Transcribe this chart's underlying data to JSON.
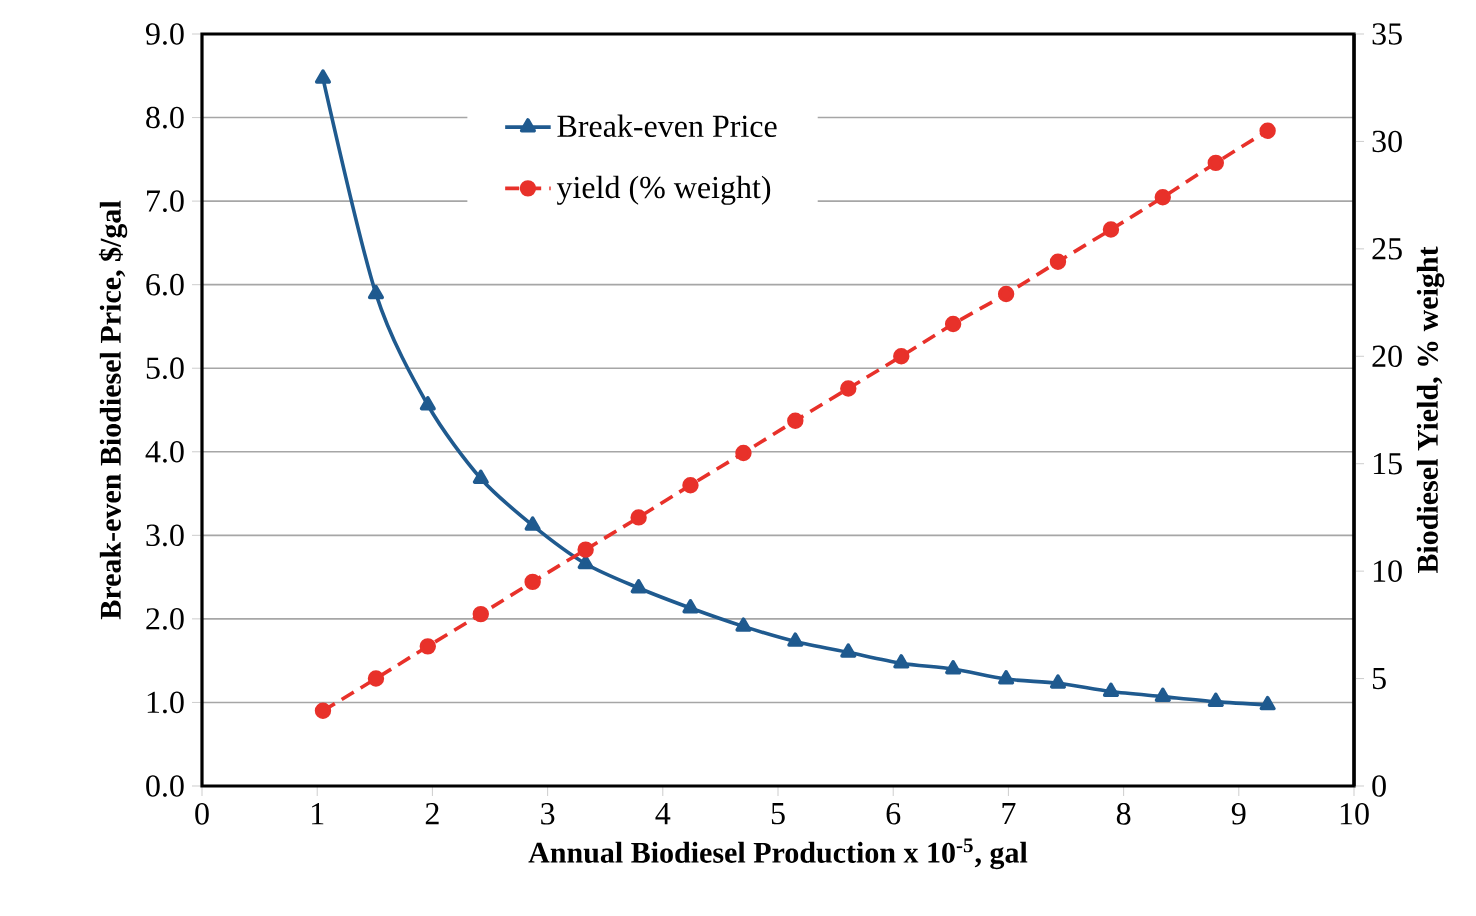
{
  "chart_data": {
    "type": "line",
    "xlabel": "Annual Biodiesel Production x 10$^{-5}$, gal",
    "ylabel": "Break-even Biodiesel  Price, $/gal",
    "y2label": "Biodiesel Yield, % weight",
    "x": [
      1.05,
      1.51,
      1.96,
      2.42,
      2.87,
      3.33,
      3.79,
      4.24,
      4.7,
      5.15,
      5.61,
      6.07,
      6.52,
      6.98,
      7.43,
      7.89,
      8.34,
      8.8,
      9.25
    ],
    "series": [
      {
        "name": "Break-even Price",
        "color": "#1f5a8f",
        "marker": "triangle",
        "line_style": "solid",
        "values": [
          8.47,
          5.89,
          4.56,
          3.68,
          3.12,
          2.66,
          2.37,
          2.13,
          1.91,
          1.73,
          1.6,
          1.47,
          1.4,
          1.28,
          1.23,
          1.13,
          1.07,
          1.01,
          0.97
        ]
      },
      {
        "name": "yield (% weight)",
        "color": "#e8312a",
        "marker": "circle",
        "line_style": "dashed",
        "axis": "y2",
        "values": [
          3.5,
          5.0,
          6.5,
          8.0,
          9.5,
          11.0,
          12.5,
          14.0,
          15.5,
          17.0,
          18.5,
          20.0,
          21.5,
          22.9,
          24.4,
          25.9,
          27.4,
          29.0,
          30.5
        ]
      }
    ],
    "xlim": [
      0,
      10
    ],
    "xticks": [
      0,
      1,
      2,
      3,
      4,
      5,
      6,
      7,
      8,
      9,
      10
    ],
    "ylim": [
      0,
      9
    ],
    "yticks": [
      {
        "value": 0,
        "label": "0.0"
      },
      {
        "value": 1,
        "label": "1.0"
      },
      {
        "value": 2,
        "label": "2.0"
      },
      {
        "value": 3,
        "label": "3.0"
      },
      {
        "value": 4,
        "label": "4.0"
      },
      {
        "value": 5,
        "label": "5.0"
      },
      {
        "value": 6,
        "label": "6.0"
      },
      {
        "value": 7,
        "label": "7.0"
      },
      {
        "value": 8,
        "label": "8.0"
      },
      {
        "value": 9,
        "label": "9.0"
      }
    ],
    "y2lim": [
      0,
      35
    ],
    "y2ticks": [
      0,
      5,
      10,
      15,
      20,
      25,
      30,
      35
    ],
    "grid": "y",
    "legend": "top"
  }
}
